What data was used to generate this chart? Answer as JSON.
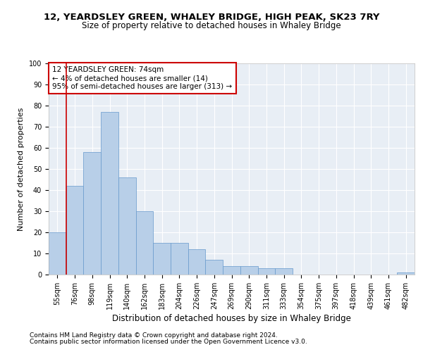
{
  "title1": "12, YEARDSLEY GREEN, WHALEY BRIDGE, HIGH PEAK, SK23 7RY",
  "title2": "Size of property relative to detached houses in Whaley Bridge",
  "xlabel": "Distribution of detached houses by size in Whaley Bridge",
  "ylabel": "Number of detached properties",
  "categories": [
    "55sqm",
    "76sqm",
    "98sqm",
    "119sqm",
    "140sqm",
    "162sqm",
    "183sqm",
    "204sqm",
    "226sqm",
    "247sqm",
    "269sqm",
    "290sqm",
    "311sqm",
    "333sqm",
    "354sqm",
    "375sqm",
    "397sqm",
    "418sqm",
    "439sqm",
    "461sqm",
    "482sqm"
  ],
  "values": [
    20,
    42,
    58,
    77,
    46,
    30,
    15,
    15,
    12,
    7,
    4,
    4,
    3,
    3,
    0,
    0,
    0,
    0,
    0,
    0,
    1
  ],
  "bar_color": "#b8cfe8",
  "bar_edge_color": "#6699cc",
  "bg_color": "#e8eef5",
  "grid_color": "#ffffff",
  "annotation_box_text": "12 YEARDSLEY GREEN: 74sqm\n← 4% of detached houses are smaller (14)\n95% of semi-detached houses are larger (313) →",
  "annotation_box_color": "#ffffff",
  "annotation_box_edge_color": "#cc0000",
  "footnote1": "Contains HM Land Registry data © Crown copyright and database right 2024.",
  "footnote2": "Contains public sector information licensed under the Open Government Licence v3.0.",
  "ylim": [
    0,
    100
  ],
  "title1_fontsize": 9.5,
  "title2_fontsize": 8.5,
  "xlabel_fontsize": 8.5,
  "ylabel_fontsize": 8,
  "tick_fontsize": 7,
  "annotation_fontsize": 7.5,
  "footnote_fontsize": 6.5
}
